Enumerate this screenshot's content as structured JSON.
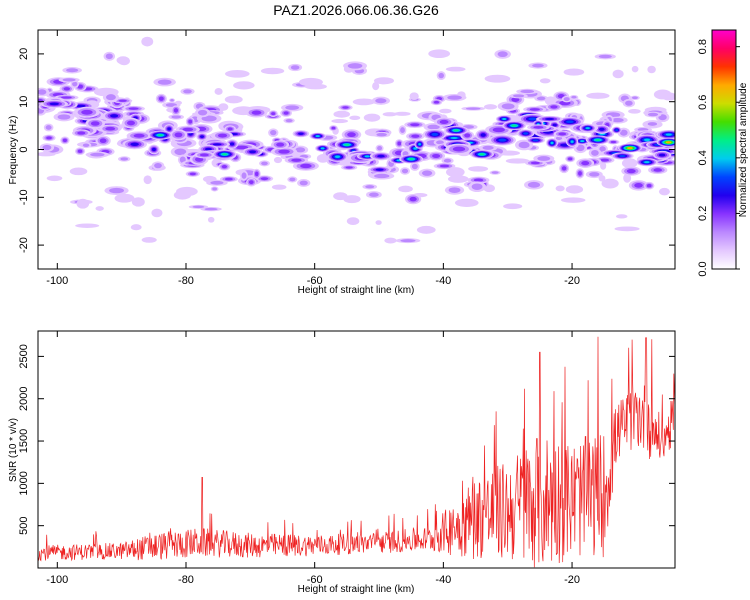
{
  "title": "PAZ1.2026.066.06.36.G26",
  "colors": {
    "snr_line": "#ee2222",
    "axis": "#000000",
    "colormap": [
      "#ffffff",
      "#e4c8ff",
      "#bb88ff",
      "#8833ff",
      "#2200ee",
      "#0044ff",
      "#00ccee",
      "#00ee88",
      "#44dd00",
      "#ccdd00",
      "#ffaa00",
      "#ff3300",
      "#ff0066",
      "#ff00cc"
    ]
  },
  "chart_data": [
    {
      "type": "heatmap",
      "xlabel": "Height of straight line (km)",
      "ylabel": "Frequency (Hz)",
      "xlim": [
        -103,
        -4
      ],
      "ylim": [
        -25,
        25
      ],
      "xticks": [
        -100,
        -80,
        -60,
        -40,
        -20
      ],
      "yticks": [
        -20,
        -10,
        0,
        10,
        20
      ],
      "ridge": {
        "x": [
          -103,
          -95,
          -85,
          -75,
          -65,
          -60,
          -55,
          -50,
          -45,
          -40,
          -35,
          -30,
          -25,
          -20,
          -15,
          -10,
          -5,
          -4
        ],
        "freq": [
          8,
          6,
          3,
          0,
          2,
          0,
          1,
          -2,
          -3,
          4,
          -1,
          5,
          4,
          3,
          2,
          0,
          1,
          2
        ]
      },
      "max_amplitude": 0.86
    },
    {
      "type": "line",
      "xlabel": "Height of straight line (km)",
      "ylabel": "SNR (10 * v/v)",
      "xlim": [
        -103,
        -4
      ],
      "ylim": [
        0,
        2800
      ],
      "xticks": [
        -100,
        -80,
        -60,
        -40,
        -20
      ],
      "yticks": [
        500,
        1000,
        1500,
        2000,
        2500
      ],
      "envelope": {
        "x": [
          -103,
          -90,
          -85,
          -78,
          -70,
          -60,
          -50,
          -42,
          -38,
          -35,
          -30,
          -25,
          -20,
          -15,
          -13,
          -10,
          -8,
          -6,
          -4
        ],
        "base": [
          150,
          170,
          200,
          250,
          220,
          230,
          260,
          300,
          380,
          450,
          500,
          550,
          600,
          650,
          1500,
          1700,
          1600,
          1400,
          1700
        ],
        "amp": [
          180,
          200,
          330,
          350,
          300,
          250,
          250,
          300,
          700,
          1000,
          1200,
          1700,
          1400,
          1500,
          700,
          800,
          900,
          500,
          600
        ]
      },
      "peaks": [
        {
          "x": -77.5,
          "y": 1070
        },
        {
          "x": -25,
          "y": 2550
        },
        {
          "x": -8.5,
          "y": 2720
        }
      ]
    }
  ],
  "colorbar": {
    "label": "Normalized spectral amplitude",
    "range": [
      0,
      0.86
    ],
    "ticks": [
      "0.0",
      "0.2",
      "0.4",
      "0.6",
      "0.8"
    ]
  }
}
